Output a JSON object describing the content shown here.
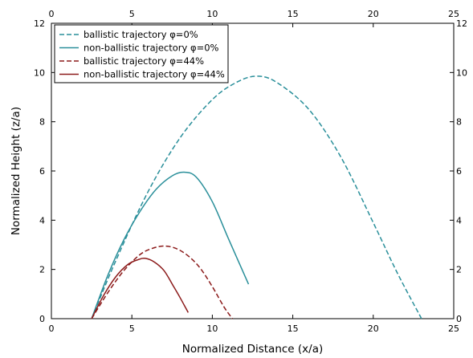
{
  "chart_data": {
    "type": "line",
    "xlabel": "Normalized Distance (x/a)",
    "ylabel": "Normalized Height (z/a)",
    "xlim": [
      0,
      25
    ],
    "ylim": [
      0,
      12
    ],
    "xticks": [
      0,
      5,
      10,
      15,
      20,
      25
    ],
    "yticks": [
      0,
      2,
      4,
      6,
      8,
      10,
      12
    ],
    "grid": false,
    "legend_position": "top-left",
    "mirror_axes": "top-and-right",
    "series": [
      {
        "name": "ballistic trajectory φ=0%",
        "color": "#2a8f9a",
        "dash": "dashed",
        "x": [
          2.5,
          4.0,
          6.0,
          8.0,
          10.0,
          11.5,
          12.75,
          14.0,
          16.0,
          18.0,
          20.0,
          21.5,
          23.0
        ],
        "y": [
          0.0,
          2.35,
          5.15,
          7.35,
          8.9,
          9.6,
          9.85,
          9.6,
          8.5,
          6.55,
          3.9,
          1.85,
          0.0
        ]
      },
      {
        "name": "non-ballistic trajectory φ=0%",
        "color": "#2a8f9a",
        "dash": "solid",
        "x": [
          2.5,
          3.5,
          4.5,
          5.5,
          6.5,
          7.5,
          8.25,
          9.0,
          10.0,
          11.0,
          12.25
        ],
        "y": [
          0.0,
          1.75,
          3.2,
          4.35,
          5.25,
          5.8,
          5.95,
          5.75,
          4.75,
          3.25,
          1.4
        ]
      },
      {
        "name": "ballistic trajectory φ=44%",
        "color": "#8b1a1a",
        "dash": "dashed",
        "x": [
          2.5,
          3.5,
          4.5,
          5.5,
          6.25,
          7.0,
          7.75,
          8.5,
          9.25,
          10.0,
          10.75,
          11.25
        ],
        "y": [
          0.0,
          1.05,
          1.95,
          2.6,
          2.85,
          2.95,
          2.85,
          2.55,
          2.05,
          1.3,
          0.45,
          0.0
        ]
      },
      {
        "name": "non-ballistic trajectory φ=44%",
        "color": "#8b1a1a",
        "dash": "solid",
        "x": [
          2.5,
          3.25,
          4.0,
          4.75,
          5.4,
          5.85,
          6.4,
          7.0,
          7.6,
          8.0,
          8.5
        ],
        "y": [
          0.0,
          0.95,
          1.7,
          2.2,
          2.4,
          2.45,
          2.3,
          1.95,
          1.3,
          0.85,
          0.25
        ]
      }
    ]
  }
}
